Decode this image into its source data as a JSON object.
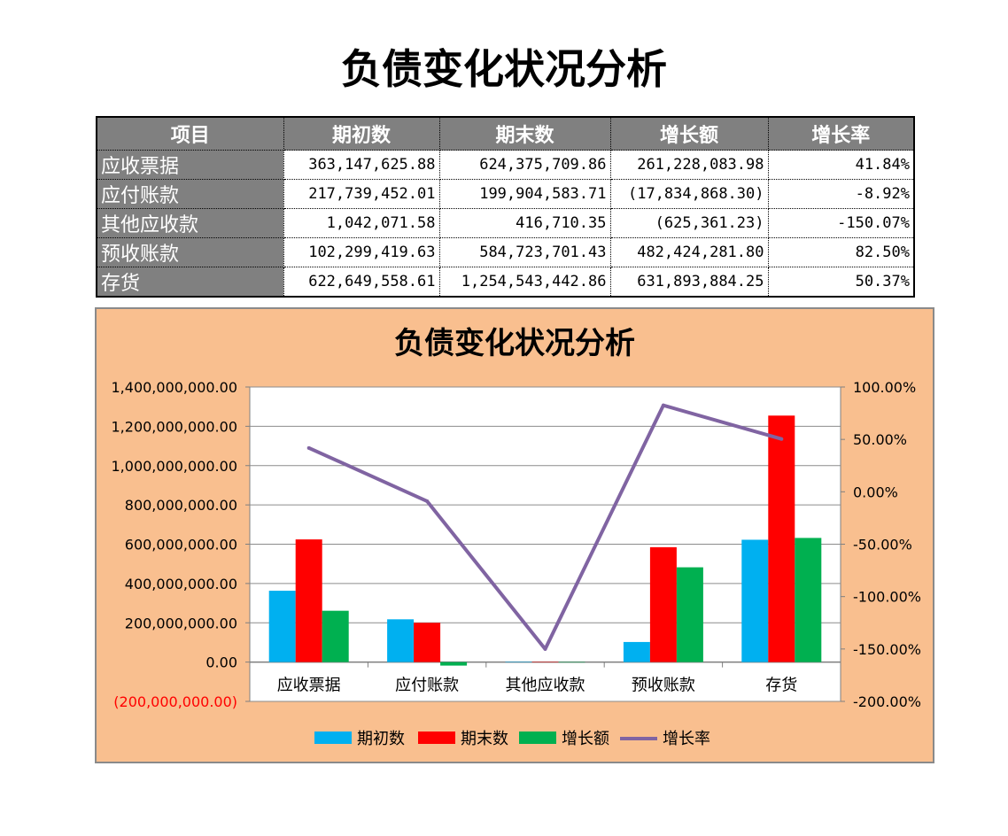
{
  "page": {
    "title": "负债变化状况分析"
  },
  "table": {
    "headers": [
      "项目",
      "期初数",
      "期末数",
      "增长额",
      "增长率"
    ],
    "rows": [
      {
        "item": "应收票据",
        "begin": "363,147,625.88",
        "end": "624,375,709.86",
        "growth": "261,228,083.98",
        "rate": "41.84%",
        "negative": false
      },
      {
        "item": "应付账款",
        "begin": "217,739,452.01",
        "end": "199,904,583.71",
        "growth": "(17,834,868.30)",
        "rate": "-8.92%",
        "negative": true
      },
      {
        "item": "其他应收款",
        "begin": "1,042,071.58",
        "end": "416,710.35",
        "growth": "(625,361.23)",
        "rate": "-150.07%",
        "negative": true
      },
      {
        "item": "预收账款",
        "begin": "102,299,419.63",
        "end": "584,723,701.43",
        "growth": "482,424,281.80",
        "rate": "82.50%",
        "negative": false
      },
      {
        "item": "存货",
        "begin": "622,649,558.61",
        "end": "1,254,543,442.86",
        "growth": "631,893,884.25",
        "rate": "50.37%",
        "negative": false
      }
    ]
  },
  "chart_data": {
    "type": "bar",
    "title": "负债变化状况分析",
    "categories": [
      "应收票据",
      "应付账款",
      "其他应收款",
      "预收账款",
      "存货"
    ],
    "series": [
      {
        "name": "期初数",
        "kind": "bar",
        "axis": "left",
        "color": "#00b0f0",
        "values": [
          363147625.88,
          217739452.01,
          1042071.58,
          102299419.63,
          622649558.61
        ]
      },
      {
        "name": "期末数",
        "kind": "bar",
        "axis": "left",
        "color": "#ff0000",
        "values": [
          624375709.86,
          199904583.71,
          416710.35,
          584723701.43,
          1254543442.86
        ]
      },
      {
        "name": "增长额",
        "kind": "bar",
        "axis": "left",
        "color": "#00b050",
        "values": [
          261228083.98,
          -17834868.3,
          -625361.23,
          482424281.8,
          631893884.25
        ]
      },
      {
        "name": "增长率",
        "kind": "line",
        "axis": "right",
        "color": "#8064a2",
        "values": [
          41.84,
          -8.92,
          -150.07,
          82.5,
          50.37
        ]
      }
    ],
    "y_left": {
      "range": [
        -200000000,
        1400000000
      ],
      "ticks": [
        "(200,000,000.00)",
        "0.00",
        "200,000,000.00",
        "400,000,000.00",
        "600,000,000.00",
        "800,000,000.00",
        "1,000,000,000.00",
        "1,200,000,000.00",
        "1,400,000,000.00"
      ],
      "tick_values": [
        -200000000,
        0,
        200000000,
        400000000,
        600000000,
        800000000,
        1000000000,
        1200000000,
        1400000000
      ],
      "negative_color": "#ff0000"
    },
    "y_right": {
      "range": [
        -200,
        100
      ],
      "ticks": [
        "-200.00%",
        "-150.00%",
        "-100.00%",
        "-50.00%",
        "0.00%",
        "50.00%",
        "100.00%"
      ],
      "tick_values": [
        -200,
        -150,
        -100,
        -50,
        0,
        50,
        100
      ]
    },
    "grid": true,
    "legend_position": "bottom"
  }
}
